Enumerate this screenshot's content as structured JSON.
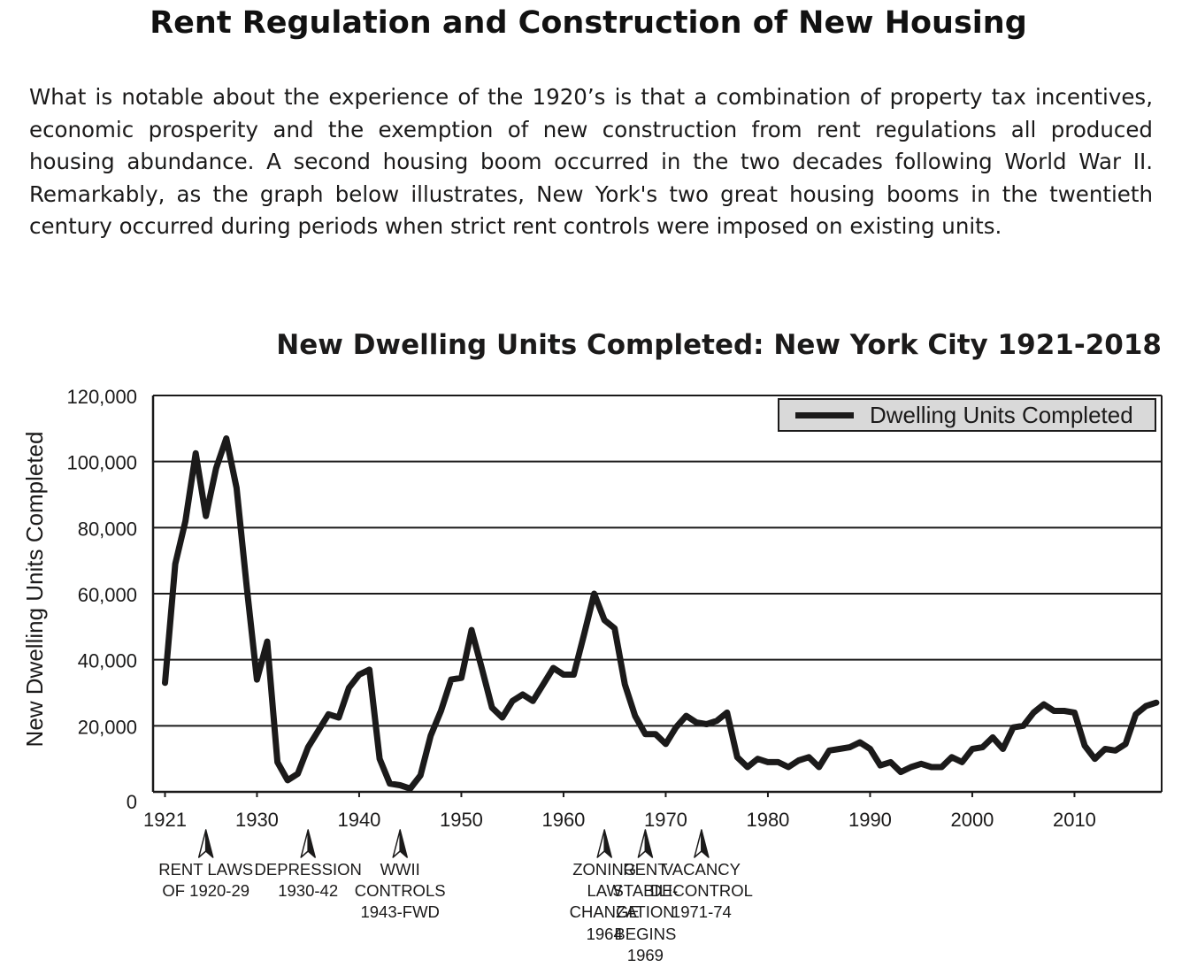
{
  "page": {
    "title": "Rent Regulation and Construction of New Housing",
    "intro": "What is notable about the experience of the 1920’s is that a combination of property tax incentives, economic prosperity and the exemption of new construction from rent regulations all produced housing abundance.  A second housing boom occurred in the two decades following World War II. Remarkably, as the graph below illustrates, New York's two great housing booms in the twentieth century occurred during periods when strict rent controls were imposed on existing units."
  },
  "chart_data": {
    "type": "line",
    "title": "New Dwelling Units Completed: New York City 1921-2018",
    "ylabel": "New Dwelling Units Completed",
    "xlabel": "",
    "xlim": [
      1920,
      2018
    ],
    "ylim": [
      0,
      120000
    ],
    "x_ticks": [
      1921,
      1930,
      1940,
      1950,
      1960,
      1970,
      1980,
      1990,
      2000,
      2010
    ],
    "x_tick_labels": [
      "1921",
      "1930",
      "1940",
      "1950",
      "1960",
      "1970",
      "1980",
      "1990",
      "2000",
      "2010"
    ],
    "y_ticks": [
      0,
      20000,
      40000,
      60000,
      80000,
      100000,
      120000
    ],
    "y_tick_labels": [
      "0",
      "20,000",
      "40,000",
      "60,000",
      "80,000",
      "100,000",
      "120,000"
    ],
    "grid": "horizontal",
    "legend_position": "top-right",
    "color": "#1b1a1a",
    "series": [
      {
        "name": "Dwelling Units Completed",
        "x": [
          1921,
          1922,
          1923,
          1924,
          1925,
          1926,
          1927,
          1928,
          1929,
          1930,
          1931,
          1932,
          1933,
          1934,
          1935,
          1936,
          1937,
          1938,
          1939,
          1940,
          1941,
          1942,
          1943,
          1944,
          1945,
          1946,
          1947,
          1948,
          1949,
          1950,
          1951,
          1952,
          1953,
          1954,
          1955,
          1956,
          1957,
          1958,
          1959,
          1960,
          1961,
          1962,
          1963,
          1964,
          1965,
          1966,
          1967,
          1968,
          1969,
          1970,
          1971,
          1972,
          1973,
          1974,
          1975,
          1976,
          1977,
          1978,
          1979,
          1980,
          1981,
          1982,
          1983,
          1984,
          1985,
          1986,
          1987,
          1988,
          1989,
          1990,
          1991,
          1992,
          1993,
          1994,
          1995,
          1996,
          1997,
          1998,
          1999,
          2000,
          2001,
          2002,
          2003,
          2004,
          2005,
          2006,
          2007,
          2008,
          2009,
          2010,
          2011,
          2012,
          2013,
          2014,
          2015,
          2016,
          2017,
          2018
        ],
        "values": [
          33000,
          69000,
          82000,
          102500,
          83500,
          98000,
          107000,
          92000,
          62000,
          34000,
          45500,
          9000,
          3500,
          5500,
          13500,
          18500,
          23500,
          22500,
          31500,
          35500,
          37000,
          10000,
          2500,
          2000,
          1000,
          5000,
          17000,
          24500,
          34000,
          34500,
          49000,
          37500,
          25500,
          22500,
          27500,
          29500,
          27500,
          32500,
          37500,
          35500,
          35500,
          47500,
          60000,
          52000,
          49500,
          32500,
          23000,
          17500,
          17500,
          14500,
          19500,
          23000,
          21000,
          20500,
          21500,
          24000,
          10500,
          7500,
          10000,
          9000,
          9000,
          7500,
          9500,
          10500,
          7500,
          12500,
          13000,
          13500,
          15000,
          13000,
          8000,
          9000,
          6000,
          7500,
          8500,
          7500,
          7500,
          10500,
          9000,
          13000,
          13500,
          16500,
          13000,
          19500,
          20000,
          24000,
          26500,
          24500,
          24500,
          24000,
          14000,
          10000,
          13000,
          12500,
          14500,
          23500,
          26000,
          27000
        ]
      }
    ]
  },
  "annotations": [
    {
      "year": 1925,
      "lines": [
        "RENT LAWS",
        "OF 1920-29"
      ]
    },
    {
      "year": 1935,
      "lines": [
        "DEPRESSION",
        "1930-42"
      ]
    },
    {
      "year": 1944,
      "lines": [
        "WWII",
        "CONTROLS",
        "1943-FWD"
      ]
    },
    {
      "year": 1964,
      "lines": [
        "ZONING",
        "LAW",
        "CHANGE",
        "1964"
      ]
    },
    {
      "year": 1968,
      "lines": [
        "RENT",
        "STABILI-",
        "ZATION",
        "BEGINS",
        "1969"
      ]
    },
    {
      "year": 1973.5,
      "lines": [
        "VACANCY",
        "DECONTROL",
        "1971-74"
      ]
    }
  ]
}
